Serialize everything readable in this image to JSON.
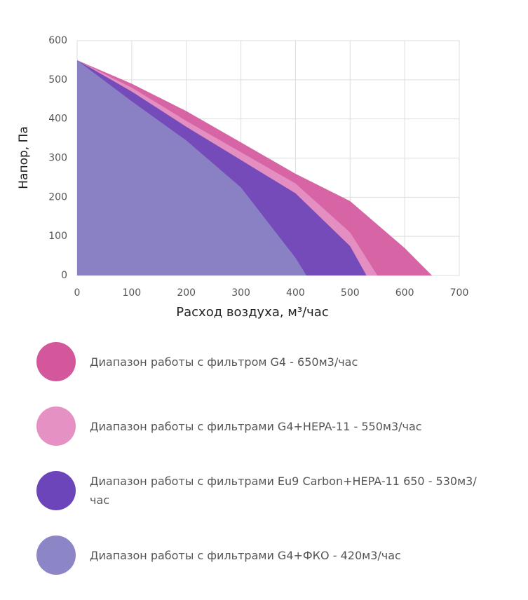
{
  "chart_data": {
    "type": "area",
    "xlabel": "Расход воздуха, м³/час",
    "ylabel": "Напор, Па",
    "xlim": [
      0,
      700
    ],
    "xticks": [
      0,
      100,
      200,
      300,
      400,
      500,
      600,
      700
    ],
    "ylim": [
      0,
      600
    ],
    "yticks": [
      0,
      100,
      200,
      300,
      400,
      500,
      600
    ],
    "grid": true,
    "series": [
      {
        "name": "Диапазон работы с фильтром G4 - 650м3/час",
        "color": "#d4579c",
        "x": [
          0,
          100,
          200,
          300,
          400,
          500,
          600,
          650
        ],
        "values": [
          550,
          490,
          420,
          340,
          260,
          190,
          70,
          0
        ]
      },
      {
        "name": "Диапазон работы с фильтрами G4+HEPA-11 - 550м3/час",
        "color": "#e691c3",
        "x": [
          0,
          100,
          200,
          300,
          400,
          500,
          550
        ],
        "values": [
          550,
          480,
          395,
          315,
          235,
          110,
          0
        ]
      },
      {
        "name": "Диапазон работы с фильтрами Eu9 Carbon+HEPA-11 650 - 530м3/час",
        "color": "#6b45b9",
        "x": [
          0,
          100,
          200,
          300,
          400,
          500,
          530
        ],
        "values": [
          550,
          470,
          380,
          295,
          210,
          75,
          0
        ]
      },
      {
        "name": "Диапазон работы с фильтрами G4+ФКО - 420м3/час",
        "color": "#8c86c6",
        "x": [
          0,
          100,
          200,
          300,
          400,
          420
        ],
        "values": [
          550,
          445,
          345,
          225,
          45,
          0
        ]
      }
    ]
  }
}
